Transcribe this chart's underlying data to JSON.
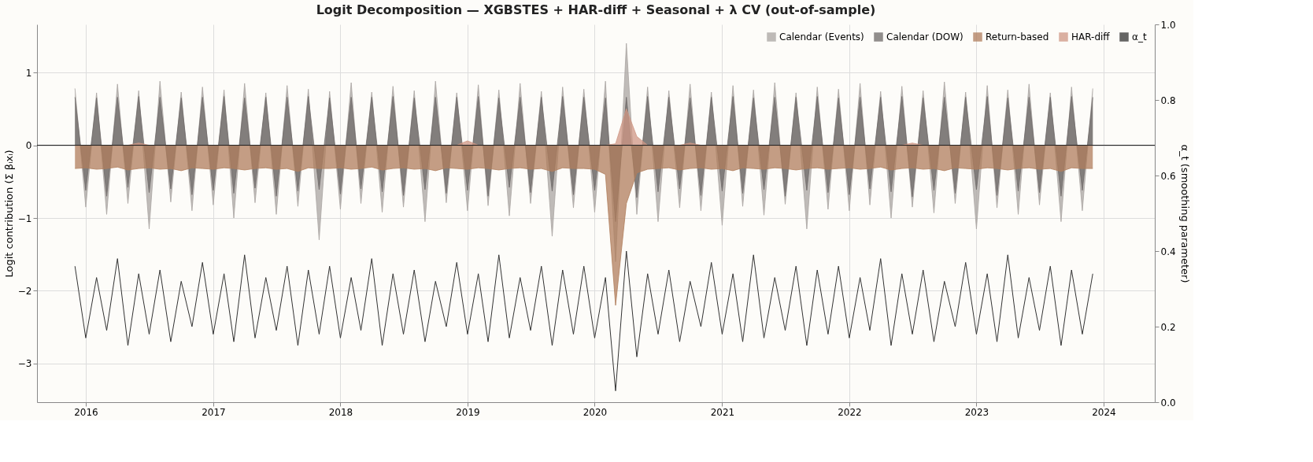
{
  "chart_data": {
    "type": "area",
    "title": "Logit Decomposition — XGBSTES + HAR-diff + Seasonal + λ CV (out-of-sample)",
    "ylabel": "Logit contribution (Σ βᵢxᵢ)",
    "y2label": "α_t (smoothing parameter)",
    "xlim": [
      "2015-08-14",
      "2024-05-27"
    ],
    "xticks": [
      "2016",
      "2017",
      "2018",
      "2019",
      "2020",
      "2021",
      "2022",
      "2023",
      "2024"
    ],
    "ylim": [
      -3.53,
      1.66
    ],
    "yticks": [
      {
        "value": -3,
        "label": "−3"
      },
      {
        "value": -2,
        "label": "−2"
      },
      {
        "value": -1,
        "label": "−1"
      },
      0,
      1
    ],
    "y2lim": [
      0,
      1
    ],
    "y2ticks": [
      {
        "value": 0,
        "label": "0.0"
      },
      {
        "value": 0.2,
        "label": "0.2"
      },
      {
        "value": 0.4,
        "label": "0.4"
      },
      {
        "value": 0.6,
        "label": "0.6"
      },
      {
        "value": 0.8,
        "label": "0.8"
      },
      {
        "value": 1,
        "label": "1.0"
      }
    ],
    "grid": true,
    "legend": "top right",
    "ref_lines": [
      {
        "axis": "y",
        "value": 0,
        "color": "#222222"
      }
    ],
    "x": [
      "2015-12",
      "2016-01",
      "2016-02",
      "2016-03",
      "2016-04",
      "2016-05",
      "2016-06",
      "2016-07",
      "2016-08",
      "2016-09",
      "2016-10",
      "2016-11",
      "2016-12",
      "2017-01",
      "2017-02",
      "2017-03",
      "2017-04",
      "2017-05",
      "2017-06",
      "2017-07",
      "2017-08",
      "2017-09",
      "2017-10",
      "2017-11",
      "2017-12",
      "2018-01",
      "2018-02",
      "2018-03",
      "2018-04",
      "2018-05",
      "2018-06",
      "2018-07",
      "2018-08",
      "2018-09",
      "2018-10",
      "2018-11",
      "2018-12",
      "2019-01",
      "2019-02",
      "2019-03",
      "2019-04",
      "2019-05",
      "2019-06",
      "2019-07",
      "2019-08",
      "2019-09",
      "2019-10",
      "2019-11",
      "2019-12",
      "2020-01",
      "2020-02",
      "2020-03",
      "2020-04",
      "2020-05",
      "2020-06",
      "2020-07",
      "2020-08",
      "2020-09",
      "2020-10",
      "2020-11",
      "2020-12",
      "2021-01",
      "2021-02",
      "2021-03",
      "2021-04",
      "2021-05",
      "2021-06",
      "2021-07",
      "2021-08",
      "2021-09",
      "2021-10",
      "2021-11",
      "2021-12",
      "2022-01",
      "2022-02",
      "2022-03",
      "2022-04",
      "2022-05",
      "2022-06",
      "2022-07",
      "2022-08",
      "2022-09",
      "2022-10",
      "2022-11",
      "2022-12",
      "2023-01",
      "2023-02",
      "2023-03",
      "2023-04",
      "2023-05",
      "2023-06",
      "2023-07",
      "2023-08",
      "2023-09",
      "2023-10",
      "2023-11",
      "2023-12"
    ],
    "series": [
      {
        "name": "Calendar (Events)",
        "color": "#a9a5a2",
        "values": [
          0.78,
          -0.85,
          0.72,
          -0.95,
          0.84,
          -0.8,
          0.75,
          -1.15,
          0.88,
          -0.78,
          0.73,
          -0.9,
          0.8,
          -0.82,
          0.76,
          -1.0,
          0.85,
          -0.79,
          0.72,
          -0.95,
          0.82,
          -0.84,
          0.77,
          -1.3,
          0.74,
          -0.88,
          0.86,
          -0.8,
          0.73,
          -0.92,
          0.81,
          -0.85,
          0.75,
          -1.05,
          0.88,
          -0.79,
          0.72,
          -0.9,
          0.83,
          -0.83,
          0.76,
          -0.97,
          0.85,
          -0.8,
          0.74,
          -1.25,
          0.8,
          -0.86,
          0.77,
          -0.92,
          0.88,
          -1.6,
          1.4,
          -0.95,
          0.8,
          -1.05,
          0.75,
          -0.86,
          0.84,
          -0.9,
          0.73,
          -1.1,
          0.82,
          -0.84,
          0.76,
          -0.96,
          0.86,
          -0.81,
          0.72,
          -1.15,
          0.8,
          -0.88,
          0.77,
          -0.9,
          0.85,
          -0.82,
          0.74,
          -1.0,
          0.81,
          -0.85,
          0.75,
          -0.93,
          0.87,
          -0.8,
          0.73,
          -1.15,
          0.82,
          -0.86,
          0.76,
          -0.95,
          0.84,
          -0.82,
          0.72,
          -1.05,
          0.8,
          -0.9,
          0.78
        ]
      },
      {
        "name": "Calendar (DOW)",
        "color": "#6e6a68",
        "values": [
          0.66,
          -0.62,
          0.65,
          -0.7,
          0.66,
          -0.58,
          0.67,
          -0.65,
          0.66,
          -0.6,
          0.65,
          -0.68,
          0.66,
          -0.62,
          0.67,
          -0.66,
          0.65,
          -0.59,
          0.66,
          -0.7,
          0.66,
          -0.63,
          0.67,
          -0.61,
          0.65,
          -0.67,
          0.66,
          -0.6,
          0.66,
          -0.64,
          0.67,
          -0.69,
          0.65,
          -0.61,
          0.66,
          -0.66,
          0.66,
          -0.62,
          0.67,
          -0.7,
          0.65,
          -0.58,
          0.66,
          -0.65,
          0.66,
          -0.63,
          0.67,
          -0.68,
          0.66,
          -0.62,
          0.65,
          -1.05,
          0.66,
          -0.72,
          0.67,
          -0.64,
          0.66,
          -0.6,
          0.65,
          -0.69,
          0.66,
          -0.63,
          0.67,
          -0.66,
          0.65,
          -0.61,
          0.66,
          -0.7,
          0.66,
          -0.62,
          0.67,
          -0.65,
          0.65,
          -0.68,
          0.66,
          -0.6,
          0.66,
          -0.64,
          0.67,
          -0.71,
          0.65,
          -0.62,
          0.66,
          -0.66,
          0.66,
          -0.61,
          0.67,
          -0.69,
          0.65,
          -0.63,
          0.66,
          -0.65,
          0.66,
          -0.7,
          0.67,
          -0.62,
          0.66
        ]
      },
      {
        "name": "Return-based",
        "color": "#b07d5c",
        "values": [
          -0.32,
          -0.31,
          -0.33,
          -0.32,
          -0.3,
          -0.34,
          -0.32,
          -0.31,
          -0.33,
          -0.32,
          -0.35,
          -0.31,
          -0.32,
          -0.33,
          -0.31,
          -0.32,
          -0.34,
          -0.32,
          -0.31,
          -0.33,
          -0.32,
          -0.36,
          -0.31,
          -0.32,
          -0.32,
          -0.31,
          -0.33,
          -0.32,
          -0.3,
          -0.34,
          -0.32,
          -0.31,
          -0.33,
          -0.32,
          -0.35,
          -0.31,
          -0.32,
          -0.33,
          -0.31,
          -0.32,
          -0.34,
          -0.32,
          -0.31,
          -0.33,
          -0.32,
          -0.36,
          -0.31,
          -0.32,
          -0.32,
          -0.33,
          -0.4,
          -2.2,
          -0.8,
          -0.38,
          -0.33,
          -0.32,
          -0.31,
          -0.34,
          -0.32,
          -0.31,
          -0.33,
          -0.32,
          -0.35,
          -0.31,
          -0.32,
          -0.33,
          -0.31,
          -0.32,
          -0.34,
          -0.32,
          -0.31,
          -0.33,
          -0.32,
          -0.31,
          -0.33,
          -0.32,
          -0.3,
          -0.34,
          -0.32,
          -0.31,
          -0.33,
          -0.32,
          -0.35,
          -0.31,
          -0.32,
          -0.33,
          -0.31,
          -0.32,
          -0.34,
          -0.32,
          -0.31,
          -0.33,
          -0.32,
          -0.36,
          -0.31,
          -0.32,
          -0.32
        ]
      },
      {
        "name": "HAR-diff",
        "color": "#cf9784",
        "values": [
          0,
          0,
          0,
          0,
          0,
          0,
          0.03,
          0,
          0,
          0,
          0,
          0,
          0,
          0,
          0,
          0,
          0,
          0,
          0,
          0,
          0,
          0,
          0,
          0,
          0,
          0,
          0,
          0,
          0,
          0,
          0,
          0,
          0,
          0,
          0,
          0,
          0,
          0.06,
          0,
          0,
          0,
          0,
          0,
          0,
          0,
          0,
          0,
          0,
          0,
          0,
          0,
          0.02,
          0.5,
          0.12,
          0,
          0,
          0,
          0,
          0.03,
          0,
          0,
          0,
          0,
          0,
          0,
          0,
          0,
          0,
          0,
          0,
          0,
          0,
          0,
          0,
          0,
          0,
          0,
          0,
          0,
          0.03,
          0,
          0,
          0,
          0,
          0,
          0,
          0,
          0,
          0,
          0,
          0,
          0,
          0,
          0,
          0,
          0,
          0
        ]
      },
      {
        "name": "α_t",
        "type": "line",
        "axis": "y2",
        "color": "#333333",
        "values": [
          0.36,
          0.17,
          0.33,
          0.19,
          0.38,
          0.15,
          0.34,
          0.18,
          0.35,
          0.16,
          0.32,
          0.2,
          0.37,
          0.18,
          0.34,
          0.16,
          0.39,
          0.17,
          0.33,
          0.19,
          0.36,
          0.15,
          0.35,
          0.18,
          0.36,
          0.17,
          0.33,
          0.19,
          0.38,
          0.15,
          0.34,
          0.18,
          0.35,
          0.16,
          0.32,
          0.2,
          0.37,
          0.18,
          0.34,
          0.16,
          0.39,
          0.17,
          0.33,
          0.19,
          0.36,
          0.15,
          0.35,
          0.18,
          0.36,
          0.17,
          0.33,
          0.03,
          0.4,
          0.12,
          0.34,
          0.18,
          0.35,
          0.16,
          0.32,
          0.2,
          0.37,
          0.18,
          0.34,
          0.16,
          0.39,
          0.17,
          0.33,
          0.19,
          0.36,
          0.15,
          0.35,
          0.18,
          0.36,
          0.17,
          0.33,
          0.19,
          0.38,
          0.15,
          0.34,
          0.18,
          0.35,
          0.16,
          0.32,
          0.2,
          0.37,
          0.18,
          0.34,
          0.16,
          0.39,
          0.17,
          0.33,
          0.19,
          0.36,
          0.15,
          0.35,
          0.18,
          0.34
        ]
      }
    ]
  }
}
